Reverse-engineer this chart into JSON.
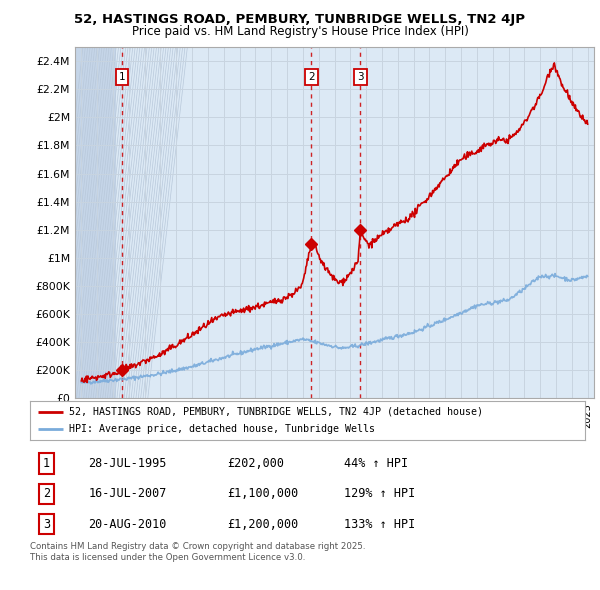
{
  "title_line1": "52, HASTINGS ROAD, PEMBURY, TUNBRIDGE WELLS, TN2 4JP",
  "title_line2": "Price paid vs. HM Land Registry's House Price Index (HPI)",
  "ylabel_ticks": [
    "£0",
    "£200K",
    "£400K",
    "£600K",
    "£800K",
    "£1M",
    "£1.2M",
    "£1.4M",
    "£1.6M",
    "£1.8M",
    "£2M",
    "£2.2M",
    "£2.4M"
  ],
  "ytick_values": [
    0,
    200000,
    400000,
    600000,
    800000,
    1000000,
    1200000,
    1400000,
    1600000,
    1800000,
    2000000,
    2200000,
    2400000
  ],
  "xmin": 1992.6,
  "xmax": 2025.4,
  "ymin": 0,
  "ymax": 2500000,
  "price_paid_color": "#cc0000",
  "hpi_color": "#7aabdb",
  "grid_color": "#c8d4e0",
  "bg_color": "#dce9f5",
  "hatch_bg_color": "#c5d5e8",
  "sale_dates": [
    1995.57,
    2007.54,
    2010.64
  ],
  "sale_prices": [
    202000,
    1100000,
    1200000
  ],
  "sale_labels": [
    "1",
    "2",
    "3"
  ],
  "legend_line1": "52, HASTINGS ROAD, PEMBURY, TUNBRIDGE WELLS, TN2 4JP (detached house)",
  "legend_line2": "HPI: Average price, detached house, Tunbridge Wells",
  "table_rows": [
    [
      "1",
      "28-JUL-1995",
      "£202,000",
      "44% ↑ HPI"
    ],
    [
      "2",
      "16-JUL-2007",
      "£1,100,000",
      "129% ↑ HPI"
    ],
    [
      "3",
      "20-AUG-2010",
      "£1,200,000",
      "133% ↑ HPI"
    ]
  ],
  "footer": "Contains HM Land Registry data © Crown copyright and database right 2025.\nThis data is licensed under the Open Government Licence v3.0."
}
